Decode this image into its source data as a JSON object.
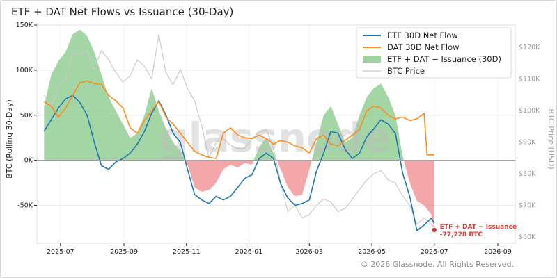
{
  "chart_data": {
    "type": "line",
    "title": "ETF + DAT Net Flows vs Issuance (30-Day)",
    "ylabel": "BTC (Rolling 30-Day)",
    "y2label": "BTC Price (USD)",
    "ylim": [
      -92000,
      150000
    ],
    "y2lim": [
      58000,
      127000
    ],
    "xlim": [
      "2025-06-08",
      "2026-09-18"
    ],
    "y_ticks": [
      {
        "value": 150000,
        "label": "150K"
      },
      {
        "value": 100000,
        "label": "100K"
      },
      {
        "value": 50000,
        "label": "50K"
      },
      {
        "value": 0,
        "label": "0K"
      },
      {
        "value": -50000,
        "label": "-50K"
      }
    ],
    "y2_ticks": [
      {
        "value": 120000,
        "label": "$120K"
      },
      {
        "value": 110000,
        "label": "$110K"
      },
      {
        "value": 100000,
        "label": "$100K"
      },
      {
        "value": 90000,
        "label": "$90K"
      },
      {
        "value": 80000,
        "label": "$80K"
      },
      {
        "value": 70000,
        "label": "$70K"
      },
      {
        "value": 60000,
        "label": "$60K"
      }
    ],
    "x_ticks": [
      {
        "date": "2025-07-01",
        "label": "2025-07"
      },
      {
        "date": "2025-09-01",
        "label": "2025-09"
      },
      {
        "date": "2025-11-01",
        "label": "2025-11"
      },
      {
        "date": "2026-01-01",
        "label": "2026-01"
      },
      {
        "date": "2026-03-01",
        "label": "2026-03"
      },
      {
        "date": "2026-05-01",
        "label": "2026-05"
      },
      {
        "date": "2026-07-01",
        "label": "2026-07"
      },
      {
        "date": "2026-09-01",
        "label": "2026-09"
      }
    ],
    "grid": true,
    "legend_position": "top-right",
    "series": [
      {
        "name": "ETF 30D Net Flow",
        "kind": "line",
        "axis": "left",
        "color": "#1f77b4",
        "points": [
          [
            "2025-06-15",
            32000
          ],
          [
            "2025-06-22",
            45000
          ],
          [
            "2025-06-29",
            58000
          ],
          [
            "2025-07-06",
            68000
          ],
          [
            "2025-07-13",
            72000
          ],
          [
            "2025-07-20",
            64000
          ],
          [
            "2025-07-27",
            50000
          ],
          [
            "2025-08-03",
            20000
          ],
          [
            "2025-08-10",
            -6000
          ],
          [
            "2025-08-17",
            -10000
          ],
          [
            "2025-08-24",
            -2000
          ],
          [
            "2025-08-31",
            2000
          ],
          [
            "2025-09-07",
            8000
          ],
          [
            "2025-09-14",
            18000
          ],
          [
            "2025-09-21",
            32000
          ],
          [
            "2025-09-28",
            52000
          ],
          [
            "2025-10-05",
            66000
          ],
          [
            "2025-10-12",
            50000
          ],
          [
            "2025-10-19",
            30000
          ],
          [
            "2025-10-26",
            20000
          ],
          [
            "2025-11-02",
            -10000
          ],
          [
            "2025-11-09",
            -38000
          ],
          [
            "2025-11-16",
            -44000
          ],
          [
            "2025-11-23",
            -48000
          ],
          [
            "2025-11-30",
            -40000
          ],
          [
            "2025-12-07",
            -44000
          ],
          [
            "2025-12-14",
            -40000
          ],
          [
            "2025-12-21",
            -30000
          ],
          [
            "2025-12-28",
            -20000
          ],
          [
            "2026-01-04",
            -16000
          ],
          [
            "2026-01-11",
            2000
          ],
          [
            "2026-01-18",
            8000
          ],
          [
            "2026-01-25",
            2000
          ],
          [
            "2026-02-01",
            -26000
          ],
          [
            "2026-02-08",
            -42000
          ],
          [
            "2026-02-15",
            -50000
          ],
          [
            "2026-02-22",
            -48000
          ],
          [
            "2026-03-01",
            -44000
          ],
          [
            "2026-03-08",
            -12000
          ],
          [
            "2026-03-15",
            8000
          ],
          [
            "2026-03-22",
            32000
          ],
          [
            "2026-03-29",
            30000
          ],
          [
            "2026-04-05",
            12000
          ],
          [
            "2026-04-12",
            2000
          ],
          [
            "2026-04-19",
            8000
          ],
          [
            "2026-04-26",
            26000
          ],
          [
            "2026-05-03",
            35000
          ],
          [
            "2026-05-10",
            45000
          ],
          [
            "2026-05-17",
            40000
          ],
          [
            "2026-05-24",
            30000
          ],
          [
            "2026-05-31",
            -14000
          ],
          [
            "2026-06-07",
            -40000
          ],
          [
            "2026-06-14",
            -78000
          ],
          [
            "2026-06-21",
            -72000
          ],
          [
            "2026-06-28",
            -64000
          ],
          [
            "2026-07-01",
            -70000
          ]
        ]
      },
      {
        "name": "DAT 30D Net Flow",
        "kind": "line",
        "axis": "left",
        "color": "#ff8c1a",
        "points": [
          [
            "2025-06-15",
            65000
          ],
          [
            "2025-06-22",
            60000
          ],
          [
            "2025-06-29",
            48000
          ],
          [
            "2025-07-06",
            58000
          ],
          [
            "2025-07-13",
            72000
          ],
          [
            "2025-07-20",
            86000
          ],
          [
            "2025-07-27",
            88000
          ],
          [
            "2025-08-03",
            85000
          ],
          [
            "2025-08-10",
            84000
          ],
          [
            "2025-08-17",
            72000
          ],
          [
            "2025-08-24",
            66000
          ],
          [
            "2025-08-31",
            58000
          ],
          [
            "2025-09-07",
            36000
          ],
          [
            "2025-09-14",
            30000
          ],
          [
            "2025-09-21",
            44000
          ],
          [
            "2025-09-28",
            55000
          ],
          [
            "2025-10-05",
            65000
          ],
          [
            "2025-10-12",
            48000
          ],
          [
            "2025-10-19",
            40000
          ],
          [
            "2025-10-26",
            30000
          ],
          [
            "2025-11-02",
            20000
          ],
          [
            "2025-11-09",
            10000
          ],
          [
            "2025-11-16",
            6000
          ],
          [
            "2025-11-23",
            3000
          ],
          [
            "2025-11-30",
            2000
          ],
          [
            "2025-12-07",
            30000
          ],
          [
            "2025-12-14",
            36000
          ],
          [
            "2025-12-21",
            28000
          ],
          [
            "2025-12-28",
            25000
          ],
          [
            "2026-01-04",
            24000
          ],
          [
            "2026-01-11",
            28000
          ],
          [
            "2026-01-18",
            24000
          ],
          [
            "2026-01-25",
            18000
          ],
          [
            "2026-02-01",
            22000
          ],
          [
            "2026-02-08",
            20000
          ],
          [
            "2026-02-15",
            16000
          ],
          [
            "2026-02-22",
            14000
          ],
          [
            "2026-03-01",
            8000
          ],
          [
            "2026-03-08",
            24000
          ],
          [
            "2026-03-15",
            28000
          ],
          [
            "2026-03-22",
            18000
          ],
          [
            "2026-03-29",
            16000
          ],
          [
            "2026-04-05",
            22000
          ],
          [
            "2026-04-12",
            28000
          ],
          [
            "2026-04-19",
            34000
          ],
          [
            "2026-04-26",
            55000
          ],
          [
            "2026-05-03",
            60000
          ],
          [
            "2026-05-10",
            58000
          ],
          [
            "2026-05-17",
            50000
          ],
          [
            "2026-05-24",
            46000
          ],
          [
            "2026-05-31",
            48000
          ],
          [
            "2026-06-07",
            44000
          ],
          [
            "2026-06-14",
            46000
          ],
          [
            "2026-06-21",
            52000
          ],
          [
            "2026-06-24",
            6000
          ],
          [
            "2026-07-01",
            6000
          ]
        ]
      },
      {
        "name": "ETF + DAT − Issuance (30D)",
        "kind": "area",
        "axis": "left",
        "positive_color": "#86c786",
        "negative_color": "#f08a8c",
        "points": [
          [
            "2025-06-15",
            60000
          ],
          [
            "2025-06-22",
            95000
          ],
          [
            "2025-06-29",
            110000
          ],
          [
            "2025-07-06",
            120000
          ],
          [
            "2025-07-13",
            140000
          ],
          [
            "2025-07-20",
            145000
          ],
          [
            "2025-07-27",
            138000
          ],
          [
            "2025-08-03",
            120000
          ],
          [
            "2025-08-10",
            95000
          ],
          [
            "2025-08-17",
            70000
          ],
          [
            "2025-08-24",
            55000
          ],
          [
            "2025-08-31",
            40000
          ],
          [
            "2025-09-07",
            25000
          ],
          [
            "2025-09-14",
            30000
          ],
          [
            "2025-09-21",
            50000
          ],
          [
            "2025-09-28",
            80000
          ],
          [
            "2025-10-05",
            55000
          ],
          [
            "2025-10-12",
            35000
          ],
          [
            "2025-10-19",
            20000
          ],
          [
            "2025-10-26",
            10000
          ],
          [
            "2025-11-02",
            -5000
          ],
          [
            "2025-11-09",
            -30000
          ],
          [
            "2025-11-16",
            -35000
          ],
          [
            "2025-11-23",
            -33000
          ],
          [
            "2025-11-30",
            -25000
          ],
          [
            "2025-12-07",
            -10000
          ],
          [
            "2025-12-14",
            -5000
          ],
          [
            "2025-12-21",
            -8000
          ],
          [
            "2025-12-28",
            -3000
          ],
          [
            "2026-01-04",
            -5000
          ],
          [
            "2026-01-11",
            15000
          ],
          [
            "2026-01-18",
            25000
          ],
          [
            "2026-01-25",
            8000
          ],
          [
            "2026-02-01",
            -10000
          ],
          [
            "2026-02-08",
            -30000
          ],
          [
            "2026-02-15",
            -40000
          ],
          [
            "2026-02-22",
            -38000
          ],
          [
            "2026-03-01",
            -10000
          ],
          [
            "2026-03-08",
            20000
          ],
          [
            "2026-03-15",
            50000
          ],
          [
            "2026-03-22",
            60000
          ],
          [
            "2026-03-29",
            40000
          ],
          [
            "2026-04-05",
            20000
          ],
          [
            "2026-04-12",
            25000
          ],
          [
            "2026-04-19",
            50000
          ],
          [
            "2026-04-26",
            70000
          ],
          [
            "2026-05-03",
            80000
          ],
          [
            "2026-05-10",
            85000
          ],
          [
            "2026-05-17",
            70000
          ],
          [
            "2026-05-24",
            50000
          ],
          [
            "2026-05-31",
            5000
          ],
          [
            "2026-06-07",
            -25000
          ],
          [
            "2026-06-14",
            -45000
          ],
          [
            "2026-06-21",
            -50000
          ],
          [
            "2026-06-28",
            -60000
          ],
          [
            "2026-07-01",
            -77228
          ]
        ]
      },
      {
        "name": "BTC Price",
        "kind": "line",
        "axis": "right",
        "color": "#c8c8c8",
        "points": [
          [
            "2025-06-15",
            105000
          ],
          [
            "2025-06-22",
            101000
          ],
          [
            "2025-06-29",
            108000
          ],
          [
            "2025-07-06",
            110000
          ],
          [
            "2025-07-13",
            118000
          ],
          [
            "2025-07-20",
            118000
          ],
          [
            "2025-07-27",
            119000
          ],
          [
            "2025-08-03",
            113000
          ],
          [
            "2025-08-10",
            119000
          ],
          [
            "2025-08-17",
            116000
          ],
          [
            "2025-08-24",
            112000
          ],
          [
            "2025-08-31",
            109000
          ],
          [
            "2025-09-07",
            111000
          ],
          [
            "2025-09-14",
            116000
          ],
          [
            "2025-09-21",
            114000
          ],
          [
            "2025-09-28",
            110000
          ],
          [
            "2025-10-05",
            124000
          ],
          [
            "2025-10-12",
            112000
          ],
          [
            "2025-10-19",
            108000
          ],
          [
            "2025-10-26",
            113000
          ],
          [
            "2025-11-02",
            107000
          ],
          [
            "2025-11-09",
            103000
          ],
          [
            "2025-11-16",
            95000
          ],
          [
            "2025-11-23",
            85000
          ],
          [
            "2025-11-30",
            90000
          ],
          [
            "2025-12-07",
            91000
          ],
          [
            "2025-12-14",
            89000
          ],
          [
            "2025-12-21",
            88000
          ],
          [
            "2025-12-28",
            88000
          ],
          [
            "2026-01-04",
            91000
          ],
          [
            "2026-01-11",
            93000
          ],
          [
            "2026-01-18",
            94000
          ],
          [
            "2026-01-25",
            88000
          ],
          [
            "2026-02-01",
            77000
          ],
          [
            "2026-02-08",
            68000
          ],
          [
            "2026-02-15",
            70000
          ],
          [
            "2026-02-22",
            66000
          ],
          [
            "2026-03-01",
            67000
          ],
          [
            "2026-03-08",
            70000
          ],
          [
            "2026-03-15",
            72000
          ],
          [
            "2026-03-22",
            71000
          ],
          [
            "2026-03-29",
            68000
          ],
          [
            "2026-04-05",
            69000
          ],
          [
            "2026-04-12",
            72000
          ],
          [
            "2026-04-19",
            75000
          ],
          [
            "2026-04-26",
            78000
          ],
          [
            "2026-05-03",
            80000
          ],
          [
            "2026-05-10",
            81000
          ],
          [
            "2026-05-17",
            78000
          ],
          [
            "2026-05-24",
            77000
          ],
          [
            "2026-05-31",
            73000
          ],
          [
            "2026-06-07",
            70000
          ],
          [
            "2026-06-14",
            64000
          ],
          [
            "2026-06-21",
            66000
          ],
          [
            "2026-06-28",
            64000
          ],
          [
            "2026-07-01",
            63000
          ]
        ]
      }
    ],
    "annotation": {
      "date": "2026-07-01",
      "value": -77228,
      "color": "#d03a35",
      "lines": [
        "ETF + DAT − Issuance",
        "-77,228 BTC"
      ]
    },
    "watermark": "glassnode",
    "copyright": "© 2026 Glassnode. All Rights Reserved."
  }
}
